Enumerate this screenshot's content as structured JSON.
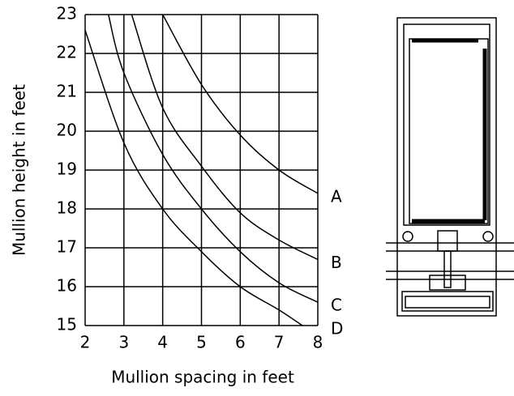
{
  "chart_data": {
    "type": "line",
    "xlabel": "Mullion spacing in feet",
    "ylabel": "Mullion height in feet",
    "xlim": [
      2,
      8
    ],
    "xticks": [
      2,
      3,
      4,
      5,
      6,
      7,
      8
    ],
    "ylim": [
      15,
      23
    ],
    "yticks": [
      15,
      16,
      17,
      18,
      19,
      20,
      21,
      22,
      23
    ],
    "grid": true,
    "series": [
      {
        "name": "A",
        "color": "#000000",
        "x": [
          4,
          5,
          6,
          7,
          8
        ],
        "values": [
          23,
          21.2,
          19.9,
          19.0,
          18.4
        ]
      },
      {
        "name": "B",
        "color": "#000000",
        "x": [
          3.2,
          4,
          5,
          6,
          7,
          8
        ],
        "values": [
          23,
          20.6,
          19.1,
          17.9,
          17.2,
          16.7
        ]
      },
      {
        "name": "C",
        "color": "#000000",
        "x": [
          2.6,
          3,
          4,
          5,
          6,
          7,
          8
        ],
        "values": [
          23,
          21.5,
          19.4,
          18.0,
          16.9,
          16.1,
          15.6
        ]
      },
      {
        "name": "D",
        "color": "#000000",
        "x": [
          2,
          3,
          4,
          5,
          6,
          7,
          7.6
        ],
        "values": [
          22.6,
          19.7,
          18.0,
          16.9,
          16.0,
          15.4,
          15
        ]
      }
    ]
  }
}
